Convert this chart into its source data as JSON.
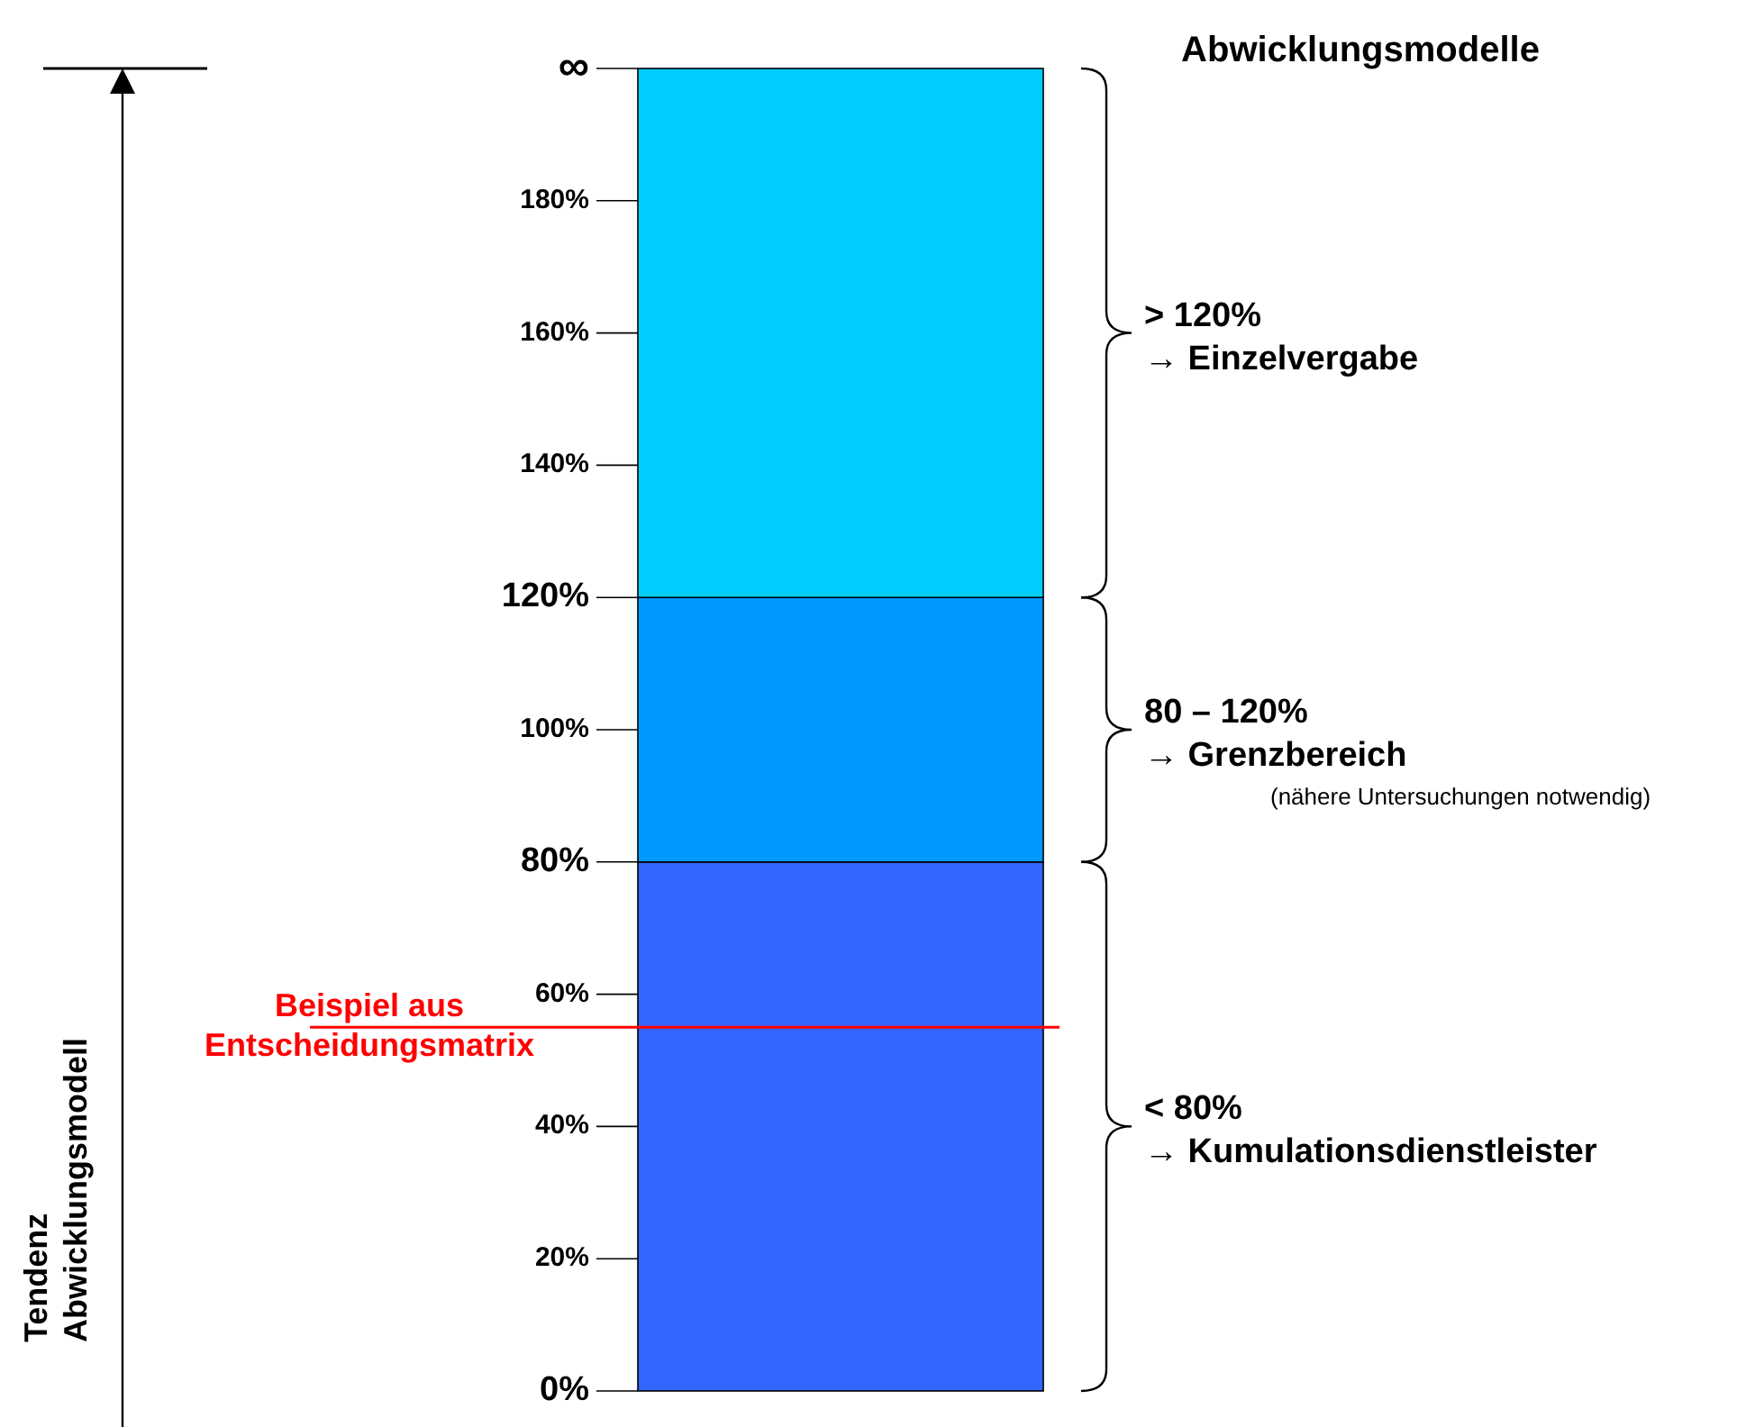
{
  "chart_data": {
    "type": "bar",
    "stacked": true,
    "title": "Abwicklungsmodelle",
    "categories": [
      null
    ],
    "series": [
      {
        "color": "#3366ff",
        "values": [
          80
        ]
      },
      {
        "color": "#0099ff",
        "values": [
          40
        ]
      },
      {
        "color": "#00ccff",
        "values": [
          80
        ]
      }
    ],
    "ylim": [
      0,
      200
    ],
    "yticks": [
      {
        "value": 0,
        "label": "0%"
      },
      {
        "value": 20,
        "label": "20%"
      },
      {
        "value": 40,
        "label": "40%"
      },
      {
        "value": 60,
        "label": "60%"
      },
      {
        "value": 80,
        "label": "80%"
      },
      {
        "value": 100,
        "label": "100%"
      },
      {
        "value": 120,
        "label": "120%"
      },
      {
        "value": 140,
        "label": "140%"
      },
      {
        "value": 160,
        "label": "160%"
      },
      {
        "value": 180,
        "label": "180%"
      },
      {
        "value": 200,
        "label": "∞"
      }
    ],
    "ref_lines": [
      {
        "axis": "y",
        "value": 55,
        "label": "Beispiel aus\nEntscheidungsmatrix",
        "color": "#ff0000"
      }
    ],
    "annotations": [
      "Tendenz\nAbwicklungsmodell",
      "> 120%\n→ Einzelvergabe",
      "80 – 120%\n→ Grenzbereich",
      "(nähere Untersuchungen notwendig)",
      "< 80%\n→ Kumulationsdienstleister"
    ]
  }
}
